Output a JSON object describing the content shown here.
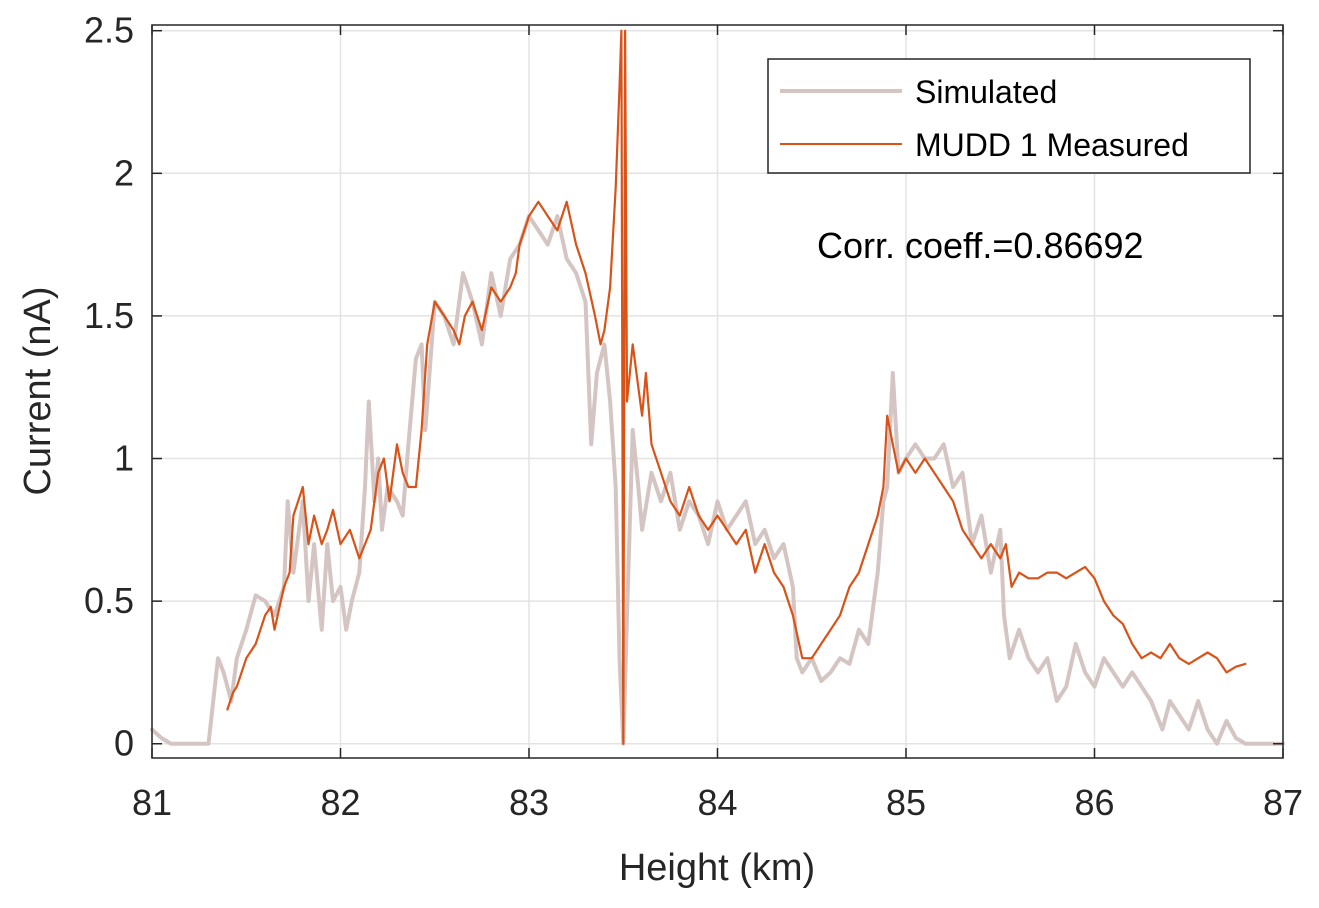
{
  "chart_data": {
    "type": "line",
    "title": "",
    "xlabel": "Height (km)",
    "ylabel": "Current (nA)",
    "xlim": [
      81,
      87
    ],
    "ylim": [
      -0.05,
      2.52
    ],
    "xticks": [
      81,
      82,
      83,
      84,
      85,
      86,
      87
    ],
    "xtick_labels": [
      "81",
      "82",
      "83",
      "84",
      "85",
      "86",
      "87"
    ],
    "yticks": [
      0,
      0.5,
      1,
      1.5,
      2,
      2.5
    ],
    "ytick_labels": [
      "0",
      "0.5",
      "1",
      "1.5",
      "2",
      "2.5"
    ],
    "grid": true,
    "legend_position": "top-right",
    "annotation": "Corr. coeff.=0.86692",
    "series": [
      {
        "name": "Simulated",
        "color": "#d4c5c3",
        "x": [
          81.0,
          81.05,
          81.1,
          81.2,
          81.3,
          81.35,
          81.38,
          81.42,
          81.45,
          81.5,
          81.55,
          81.6,
          81.65,
          81.7,
          81.72,
          81.75,
          81.8,
          81.83,
          81.86,
          81.9,
          81.93,
          81.96,
          82.0,
          82.03,
          82.06,
          82.1,
          82.13,
          82.15,
          82.18,
          82.2,
          82.22,
          82.25,
          82.3,
          82.33,
          82.36,
          82.4,
          82.43,
          82.45,
          82.5,
          82.55,
          82.6,
          82.65,
          82.7,
          82.75,
          82.8,
          82.85,
          82.9,
          82.95,
          83.0,
          83.05,
          83.1,
          83.15,
          83.2,
          83.25,
          83.3,
          83.33,
          83.36,
          83.4,
          83.43,
          83.46,
          83.48,
          83.5,
          83.52,
          83.55,
          83.58,
          83.6,
          83.65,
          83.7,
          83.75,
          83.8,
          83.85,
          83.9,
          83.95,
          84.0,
          84.05,
          84.1,
          84.15,
          84.2,
          84.25,
          84.3,
          84.35,
          84.4,
          84.42,
          84.45,
          84.5,
          84.55,
          84.6,
          84.65,
          84.7,
          84.75,
          84.8,
          84.85,
          84.88,
          84.9,
          84.93,
          84.96,
          85.0,
          85.05,
          85.1,
          85.15,
          85.2,
          85.25,
          85.3,
          85.35,
          85.4,
          85.45,
          85.5,
          85.52,
          85.55,
          85.6,
          85.65,
          85.7,
          85.75,
          85.8,
          85.85,
          85.9,
          85.95,
          86.0,
          86.05,
          86.1,
          86.15,
          86.2,
          86.25,
          86.3,
          86.33,
          86.36,
          86.4,
          86.45,
          86.5,
          86.55,
          86.6,
          86.65,
          86.7,
          86.75,
          86.8,
          86.9,
          87.0
        ],
        "values": [
          0.05,
          0.02,
          0.0,
          0.0,
          0.0,
          0.3,
          0.25,
          0.15,
          0.3,
          0.4,
          0.52,
          0.5,
          0.45,
          0.55,
          0.85,
          0.6,
          0.85,
          0.5,
          0.7,
          0.4,
          0.7,
          0.5,
          0.55,
          0.4,
          0.5,
          0.6,
          0.9,
          1.2,
          0.85,
          1.0,
          0.75,
          0.9,
          0.85,
          0.8,
          1.05,
          1.35,
          1.4,
          1.1,
          1.55,
          1.5,
          1.4,
          1.65,
          1.55,
          1.4,
          1.65,
          1.5,
          1.7,
          1.75,
          1.85,
          1.8,
          1.75,
          1.85,
          1.7,
          1.65,
          1.55,
          1.05,
          1.3,
          1.4,
          1.2,
          0.9,
          0.3,
          0.0,
          0.45,
          1.1,
          0.9,
          0.75,
          0.95,
          0.85,
          0.95,
          0.75,
          0.85,
          0.8,
          0.7,
          0.85,
          0.75,
          0.8,
          0.85,
          0.7,
          0.75,
          0.65,
          0.7,
          0.55,
          0.3,
          0.25,
          0.3,
          0.22,
          0.25,
          0.3,
          0.28,
          0.4,
          0.35,
          0.6,
          0.85,
          0.9,
          1.3,
          0.95,
          1.0,
          1.05,
          1.0,
          1.0,
          1.05,
          0.9,
          0.95,
          0.7,
          0.8,
          0.6,
          0.75,
          0.45,
          0.3,
          0.4,
          0.3,
          0.25,
          0.3,
          0.15,
          0.2,
          0.35,
          0.25,
          0.2,
          0.3,
          0.25,
          0.2,
          0.25,
          0.2,
          0.15,
          0.1,
          0.05,
          0.15,
          0.1,
          0.05,
          0.15,
          0.05,
          0.0,
          0.08,
          0.02,
          0.0,
          0.0,
          0.0
        ]
      },
      {
        "name": "MUDD 1 Measured",
        "color": "#d95319",
        "x": [
          81.4,
          81.43,
          81.45,
          81.5,
          81.55,
          81.6,
          81.63,
          81.65,
          81.7,
          81.73,
          81.75,
          81.8,
          81.83,
          81.86,
          81.9,
          81.93,
          81.96,
          82.0,
          82.05,
          82.1,
          82.13,
          82.16,
          82.2,
          82.23,
          82.26,
          82.3,
          82.33,
          82.36,
          82.4,
          82.43,
          82.46,
          82.5,
          82.55,
          82.6,
          82.63,
          82.66,
          82.7,
          82.75,
          82.8,
          82.85,
          82.9,
          82.93,
          82.95,
          83.0,
          83.05,
          83.1,
          83.15,
          83.2,
          83.25,
          83.3,
          83.35,
          83.38,
          83.4,
          83.43,
          83.46,
          83.48,
          83.49,
          83.5,
          83.51,
          83.52,
          83.55,
          83.58,
          83.6,
          83.62,
          83.65,
          83.7,
          83.75,
          83.8,
          83.85,
          83.9,
          83.95,
          84.0,
          84.05,
          84.1,
          84.15,
          84.2,
          84.25,
          84.3,
          84.35,
          84.4,
          84.45,
          84.5,
          84.55,
          84.6,
          84.65,
          84.7,
          84.75,
          84.8,
          84.85,
          84.88,
          84.9,
          84.93,
          84.96,
          85.0,
          85.05,
          85.1,
          85.15,
          85.2,
          85.25,
          85.3,
          85.35,
          85.4,
          85.45,
          85.5,
          85.53,
          85.56,
          85.6,
          85.65,
          85.7,
          85.75,
          85.8,
          85.85,
          85.9,
          85.95,
          86.0,
          86.05,
          86.1,
          86.15,
          86.2,
          86.25,
          86.3,
          86.35,
          86.4,
          86.45,
          86.5,
          86.55,
          86.6,
          86.65,
          86.7,
          86.75,
          86.8
        ],
        "values": [
          0.12,
          0.18,
          0.2,
          0.3,
          0.35,
          0.45,
          0.48,
          0.4,
          0.55,
          0.6,
          0.8,
          0.9,
          0.7,
          0.8,
          0.7,
          0.75,
          0.82,
          0.7,
          0.75,
          0.65,
          0.7,
          0.75,
          0.95,
          1.0,
          0.85,
          1.05,
          0.95,
          0.9,
          0.9,
          1.1,
          1.4,
          1.55,
          1.5,
          1.45,
          1.4,
          1.5,
          1.55,
          1.45,
          1.6,
          1.55,
          1.6,
          1.65,
          1.75,
          1.85,
          1.9,
          1.85,
          1.8,
          1.9,
          1.75,
          1.65,
          1.5,
          1.4,
          1.45,
          1.6,
          1.95,
          2.3,
          2.5,
          0.0,
          2.5,
          1.2,
          1.4,
          1.25,
          1.15,
          1.3,
          1.05,
          0.95,
          0.85,
          0.8,
          0.9,
          0.8,
          0.75,
          0.8,
          0.75,
          0.7,
          0.75,
          0.6,
          0.7,
          0.6,
          0.55,
          0.45,
          0.3,
          0.3,
          0.35,
          0.4,
          0.45,
          0.55,
          0.6,
          0.7,
          0.8,
          0.9,
          1.15,
          1.05,
          0.95,
          1.0,
          0.95,
          1.0,
          0.95,
          0.9,
          0.85,
          0.75,
          0.7,
          0.65,
          0.7,
          0.65,
          0.7,
          0.55,
          0.6,
          0.58,
          0.58,
          0.6,
          0.6,
          0.58,
          0.6,
          0.62,
          0.58,
          0.5,
          0.45,
          0.42,
          0.35,
          0.3,
          0.32,
          0.3,
          0.35,
          0.3,
          0.28,
          0.3,
          0.32,
          0.3,
          0.25,
          0.27,
          0.28
        ]
      }
    ]
  }
}
